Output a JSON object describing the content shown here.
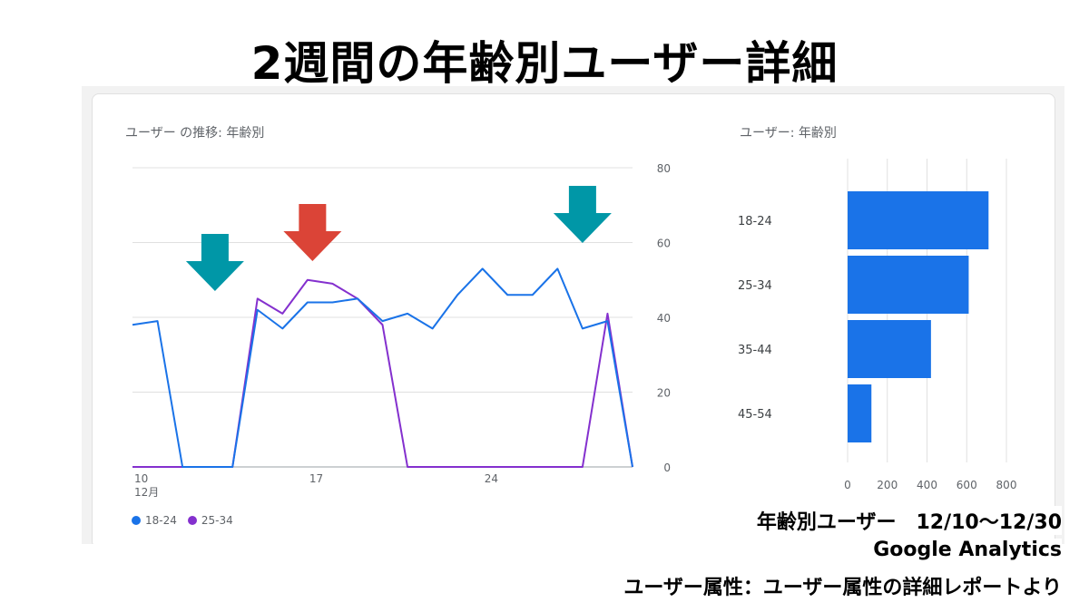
{
  "page": {
    "title": "2週間の年齢別ユーザー詳細"
  },
  "line_card": {
    "title": "ユーザー の推移: 年齢別"
  },
  "bar_card": {
    "title": "ユーザー: 年齢別"
  },
  "legend": [
    {
      "label": "18-24",
      "color": "#1a73e8"
    },
    {
      "label": "25-34",
      "color": "#8430ce"
    }
  ],
  "annotations": [
    {
      "type": "arrow-down",
      "color": "#0097a7",
      "x_day": 13.3
    },
    {
      "type": "arrow-down",
      "color": "#db4437",
      "x_day": 17.2
    },
    {
      "type": "arrow-down",
      "color": "#0097a7",
      "x_day": 28.0
    }
  ],
  "caption": {
    "line1": "年齢別ユーザー　12/10〜12/30",
    "line2": "Google Analytics",
    "line3": "ユーザー属性：ユーザー属性の詳細レポートより"
  },
  "chart_data": [
    {
      "type": "line",
      "title": "ユーザー の推移: 年齢別",
      "x_tick_labels": [
        {
          "day": 10,
          "label": "10",
          "sub": "12月"
        },
        {
          "day": 17,
          "label": "17"
        },
        {
          "day": 24,
          "label": "24"
        }
      ],
      "x": [
        10,
        11,
        12,
        13,
        14,
        15,
        16,
        17,
        18,
        19,
        20,
        21,
        22,
        23,
        24,
        25,
        26,
        27,
        28,
        29,
        30
      ],
      "series": [
        {
          "name": "18-24",
          "color": "#1a73e8",
          "values": [
            38,
            39,
            0,
            0,
            0,
            42,
            37,
            44,
            44,
            45,
            39,
            41,
            37,
            46,
            53,
            46,
            46,
            53,
            37,
            39,
            0
          ]
        },
        {
          "name": "25-34",
          "color": "#8430ce",
          "values": [
            0,
            0,
            0,
            0,
            0,
            45,
            41,
            50,
            49,
            45,
            38,
            0,
            0,
            0,
            0,
            0,
            0,
            0,
            0,
            41,
            0
          ]
        }
      ],
      "ylim": [
        0,
        80
      ],
      "yticks": [
        0,
        20,
        40,
        60,
        80
      ],
      "y_axis_side": "right",
      "grid": true
    },
    {
      "type": "bar",
      "orientation": "horizontal",
      "title": "ユーザー: 年齢別",
      "categories": [
        "18-24",
        "25-34",
        "35-44",
        "45-54"
      ],
      "values": [
        710,
        610,
        420,
        120
      ],
      "color": "#1a73e8",
      "xlim": [
        0,
        800
      ],
      "xticks": [
        0,
        200,
        400,
        600,
        800
      ],
      "grid": true
    }
  ]
}
